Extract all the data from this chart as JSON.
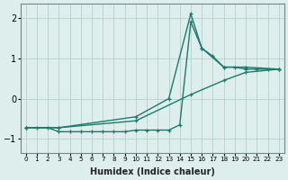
{
  "background_color": "#ddeeed",
  "grid_color": "#b8d0cc",
  "line_color": "#1a7a6e",
  "xlabel": "Humidex (Indice chaleur)",
  "xlim": [
    -0.5,
    23.5
  ],
  "ylim": [
    -1.35,
    2.35
  ],
  "yticks": [
    -1,
    0,
    1,
    2
  ],
  "xtick_labels": [
    "0",
    "1",
    "2",
    "3",
    "4",
    "5",
    "6",
    "7",
    "8",
    "9",
    "10",
    "11",
    "12",
    "13",
    "14",
    "15",
    "16",
    "17",
    "18",
    "19",
    "20",
    "21",
    "22",
    "23"
  ],
  "series": [
    {
      "x": [
        0,
        1,
        2,
        3,
        4,
        5,
        6,
        7,
        8,
        9,
        10,
        11,
        12,
        13,
        14,
        15,
        16,
        17,
        18,
        19,
        20,
        21,
        22,
        23
      ],
      "y": [
        -0.72,
        -0.72,
        -0.72,
        -0.82,
        -0.82,
        -0.82,
        -0.82,
        -0.82,
        -0.82,
        -0.82,
        -0.78,
        -0.78,
        -0.78,
        -0.78,
        -0.65,
        1.9,
        1.25,
        1.05,
        0.78,
        0.78,
        0.73,
        0.73,
        0.73,
        0.73
      ]
    },
    {
      "x": [
        0,
        3,
        10,
        15,
        18,
        20,
        23
      ],
      "y": [
        -0.72,
        -0.72,
        -0.55,
        0.1,
        0.45,
        0.65,
        0.73
      ]
    },
    {
      "x": [
        0,
        3,
        10,
        13,
        15,
        16,
        18,
        20,
        23
      ],
      "y": [
        -0.72,
        -0.72,
        -0.45,
        0.0,
        2.1,
        1.25,
        0.78,
        0.78,
        0.73
      ]
    }
  ]
}
